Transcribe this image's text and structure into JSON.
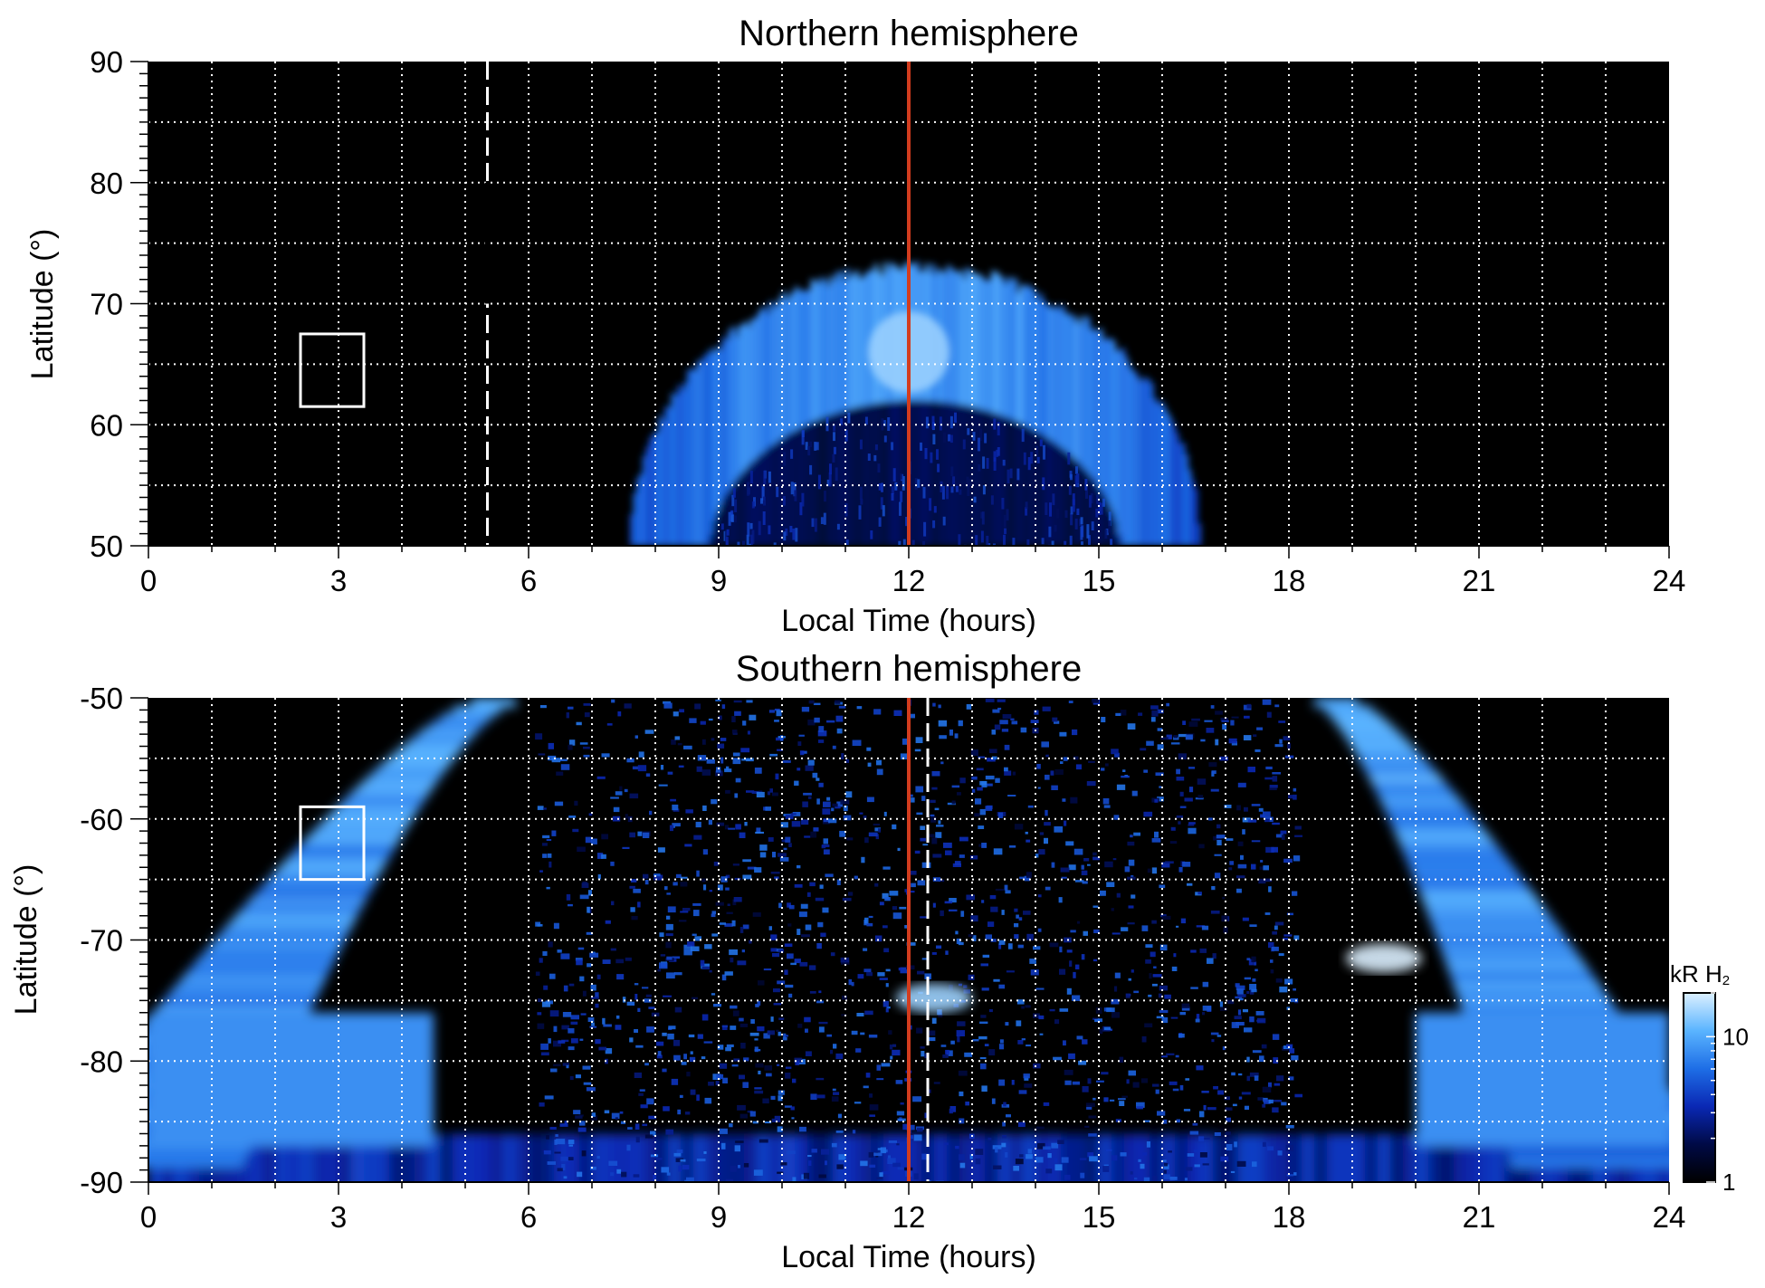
{
  "chart_data": [
    {
      "type": "heatmap",
      "title": "Northern hemisphere",
      "xlabel": "Local Time (hours)",
      "ylabel": "Latitude (°)",
      "xlim": [
        0,
        24
      ],
      "ylim": [
        50,
        90
      ],
      "xticks": [
        0,
        3,
        6,
        9,
        12,
        15,
        18,
        21,
        24
      ],
      "yticks": [
        50,
        60,
        70,
        80,
        90
      ],
      "grid": true,
      "background": "#000000",
      "oval": {
        "lt_start": 7.6,
        "lt_end": 16.6,
        "peak_lat": 73,
        "inner_peak_lat": 62,
        "intensity_kR": 8
      },
      "bright_spot": {
        "lt": 12,
        "lat": 66,
        "intensity_kR": 15
      },
      "noon_line": {
        "x": 12,
        "color": "#d23c1e"
      },
      "dashed_line": {
        "x": 5.35,
        "color": "#ffffff",
        "lat_gaps": [
          [
            70,
            80
          ]
        ]
      },
      "marker_box": {
        "lt": [
          2.4,
          3.4
        ],
        "lat": [
          61.5,
          67.5
        ],
        "color": "#ffffff"
      }
    },
    {
      "type": "heatmap",
      "title": "Southern hemisphere",
      "xlabel": "Local Time (hours)",
      "ylabel": "Latitude (°)",
      "xlim": [
        0,
        24
      ],
      "ylim": [
        -90,
        -50
      ],
      "xticks": [
        0,
        3,
        6,
        9,
        12,
        15,
        18,
        21,
        24
      ],
      "yticks": [
        -90,
        -80,
        -70,
        -60,
        -50
      ],
      "grid": true,
      "background": "#000000",
      "oval": {
        "dawn_lt_at_top": 5.8,
        "dusk_lt_at_top": 18.4,
        "intensity_kR": 10
      },
      "bright_spots": [
        {
          "lt": 12.4,
          "lat": -74.8,
          "intensity_kR": 15
        },
        {
          "lt": 19.5,
          "lat": -71.5,
          "intensity_kR": 20
        }
      ],
      "noon_line": {
        "x": 12,
        "color": "#d23c1e"
      },
      "dashed_line": {
        "x": 12.3,
        "color": "#ffffff"
      },
      "marker_box": {
        "lt": [
          2.4,
          3.4
        ],
        "lat": [
          -65,
          -59
        ],
        "color": "#ffffff"
      }
    }
  ],
  "colorbar": {
    "label_main": "kR H",
    "label_sub": "2",
    "scale": "log",
    "range": [
      1,
      20
    ],
    "ticks": [
      1,
      10
    ],
    "colors": [
      "#000000",
      "#000a46",
      "#0a28b4",
      "#1e6ee6",
      "#5ab4ff",
      "#dcf0ff"
    ]
  }
}
